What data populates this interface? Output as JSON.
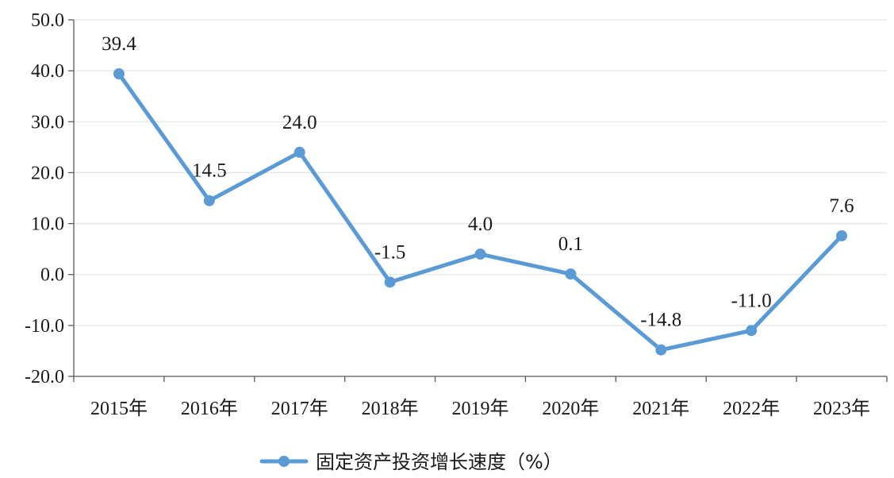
{
  "chart_data": {
    "type": "line",
    "categories": [
      "2015年",
      "2016年",
      "2017年",
      "2018年",
      "2019年",
      "2020年",
      "2021年",
      "2022年",
      "2023年"
    ],
    "series": [
      {
        "name": "固定资产投资增长速度（%）",
        "values": [
          39.4,
          14.5,
          24.0,
          -1.5,
          4.0,
          0.1,
          -14.8,
          -11.0,
          7.6
        ],
        "labels": [
          "39.4",
          "14.5",
          "24.0",
          "-1.5",
          "4.0",
          "0.1",
          "-14.8",
          "-11.0",
          "7.6"
        ],
        "color": "#5b9bd5"
      }
    ],
    "ylim": [
      -20,
      50
    ],
    "yticks": [
      "50.0",
      "40.0",
      "30.0",
      "20.0",
      "10.0",
      "0.0",
      "-10.0",
      "-20.0"
    ],
    "ytick_values": [
      50,
      40,
      30,
      20,
      10,
      0,
      -10,
      -20
    ],
    "grid": true,
    "legend_position": "bottom",
    "axis_color": "#595959",
    "grid_color": "#e6e6e6"
  }
}
